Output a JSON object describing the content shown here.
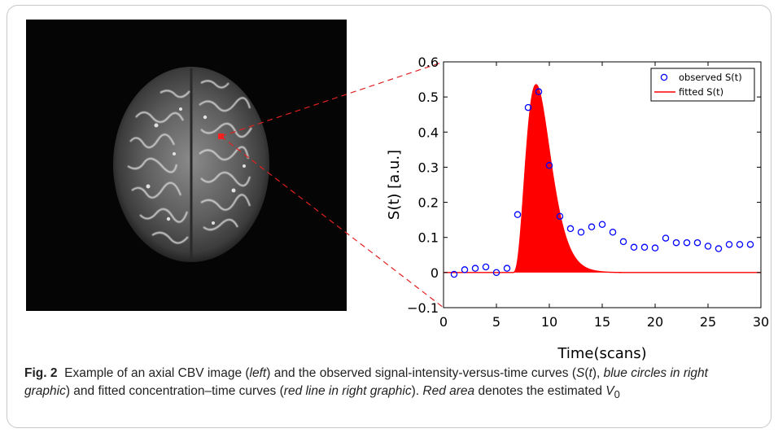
{
  "figure": {
    "label": "Fig. 2",
    "caption_parts": [
      {
        "text": "Example of an axial CBV image (",
        "style": "normal"
      },
      {
        "text": "left",
        "style": "italic"
      },
      {
        "text": ") and the observed signal-intensity-versus-time curves (",
        "style": "normal"
      },
      {
        "text": "S",
        "style": "italic"
      },
      {
        "text": "(",
        "style": "normal"
      },
      {
        "text": "t",
        "style": "italic"
      },
      {
        "text": "), ",
        "style": "normal"
      },
      {
        "text": "blue circles in right graphic",
        "style": "italic"
      },
      {
        "text": ") and fitted concentration–time curves (",
        "style": "normal"
      },
      {
        "text": "red line in right graphic",
        "style": "italic"
      },
      {
        "text": "). ",
        "style": "normal"
      },
      {
        "text": "Red area",
        "style": "italic"
      },
      {
        "text": " denotes the estimated ",
        "style": "normal"
      },
      {
        "text": "V",
        "style": "italic"
      },
      {
        "text": "0",
        "style": "sub"
      }
    ]
  },
  "colors": {
    "observed": "#0000ff",
    "fitted": "#ff0000",
    "area": "#ff0000",
    "connector": "#e02020"
  },
  "chart_data": {
    "type": "scatter",
    "xlabel": "Time(scans)",
    "ylabel": "S(t) [a.u.]",
    "xlim": [
      0,
      30
    ],
    "ylim": [
      -0.1,
      0.6
    ],
    "xticks": [
      "0",
      "5",
      "10",
      "15",
      "20",
      "25",
      "30"
    ],
    "yticks": [
      "−0.1",
      "0",
      "0.1",
      "0.2",
      "0.3",
      "0.4",
      "0.5",
      "0.6"
    ],
    "grid": false,
    "legend_position": "top-right",
    "series": [
      {
        "name": "observed S(t)",
        "marker": "circle",
        "x": [
          1,
          2,
          3,
          4,
          5,
          6,
          7,
          8,
          9,
          10,
          11,
          12,
          13,
          14,
          15,
          16,
          17,
          18,
          19,
          20,
          21,
          22,
          23,
          24,
          25,
          26,
          27,
          28,
          29
        ],
        "y": [
          -0.005,
          0.008,
          0.012,
          0.016,
          0.0,
          0.012,
          0.165,
          0.47,
          0.515,
          0.305,
          0.16,
          0.125,
          0.115,
          0.13,
          0.137,
          0.115,
          0.088,
          0.072,
          0.072,
          0.07,
          0.098,
          0.085,
          0.085,
          0.085,
          0.075,
          0.068,
          0.08,
          0.08,
          0.08
        ]
      },
      {
        "name": "fitted S(t)",
        "marker": "line",
        "shape": "gamma-variate",
        "t0": 6.5,
        "peak_time": 8.75,
        "peak_value": 0.535,
        "alpha": 3.8,
        "curve_end": 30
      }
    ]
  }
}
